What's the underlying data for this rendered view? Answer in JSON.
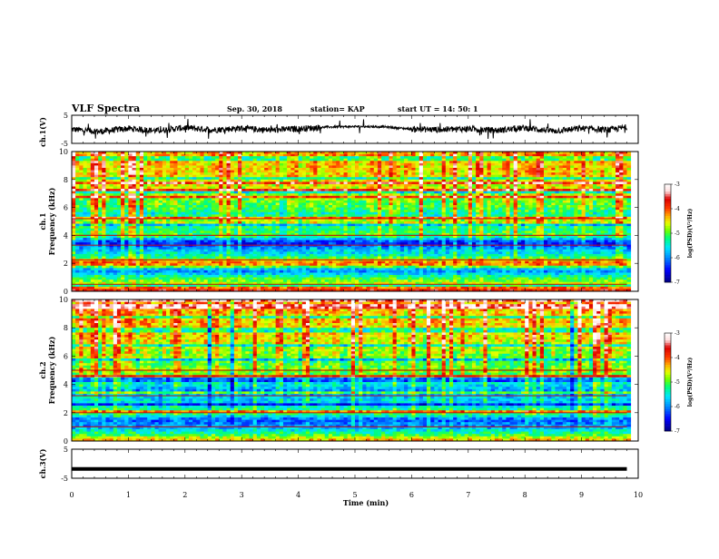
{
  "header": {
    "title": "VLF Spectra",
    "date": "Sep. 30, 2018",
    "station": "station= KAP",
    "start_ut": "start  UT =   14: 50: 1"
  },
  "chart_data": [
    {
      "type": "line",
      "panel": "ch1-waveform",
      "ylabel": "ch.1(V)",
      "ylim": [
        -5,
        5
      ],
      "y_ticks": [
        "5",
        "-5"
      ],
      "xlim": [
        0,
        10
      ],
      "trace_color": "#000000",
      "description_values": "noisy waveform oscillating roughly between -2.5 and 2 V, calmer around 4.5-6 min",
      "x": [
        0,
        0.5,
        1,
        1.5,
        2,
        2.5,
        3,
        3.5,
        4,
        4.5,
        5,
        5.5,
        6,
        6.5,
        7,
        7.5,
        8,
        8.5,
        9,
        9.5,
        9.8
      ],
      "y": [
        0,
        -0.8,
        0.3,
        -0.5,
        0.6,
        -0.2,
        0.4,
        -0.3,
        0.2,
        0.8,
        1.0,
        0.9,
        0.1,
        -0.1,
        0.2,
        -0.4,
        0.5,
        -0.6,
        0.3,
        -0.2,
        0.8
      ]
    },
    {
      "type": "heatmap",
      "panel": "ch1-spectrogram",
      "ylabel": "ch.1\nFrequency (kHz)",
      "ylim": [
        0,
        10
      ],
      "y_ticks": [
        "0",
        "2",
        "4",
        "6",
        "8",
        "10"
      ],
      "xlim": [
        0,
        10
      ],
      "colorbar": {
        "label": "log(PSD)(V²/Hz)",
        "range": [
          -7,
          -3
        ],
        "ticks": [
          "-3",
          "-4",
          "-5",
          "-6",
          "-7"
        ]
      },
      "frequency_profile_kHz": [
        0,
        0.5,
        1,
        1.5,
        2,
        2.5,
        3,
        3.5,
        4,
        4.5,
        5,
        5.5,
        6,
        6.5,
        7,
        7.5,
        8,
        8.5,
        9,
        9.5,
        10
      ],
      "log_psd_profile": [
        -3.6,
        -4.6,
        -5.2,
        -6.1,
        -3.9,
        -5.4,
        -5.8,
        -6.5,
        -5.0,
        -5.3,
        -4.6,
        -5.4,
        -5.0,
        -4.9,
        -4.7,
        -4.6,
        -4.5,
        -4.4,
        -4.4,
        -4.3,
        -4.3
      ]
    },
    {
      "type": "heatmap",
      "panel": "ch2-spectrogram",
      "ylabel": "ch.2\nFrequency (kHz)",
      "ylim": [
        0,
        10
      ],
      "y_ticks": [
        "0",
        "2",
        "4",
        "6",
        "8",
        "10"
      ],
      "xlim": [
        0,
        10
      ],
      "colorbar": {
        "label": "log(PSD)(V²/Hz)",
        "range": [
          -7,
          -3
        ],
        "ticks": [
          "-3",
          "-4",
          "-5",
          "-6",
          "-7"
        ]
      },
      "frequency_profile_kHz": [
        0,
        0.5,
        1,
        1.5,
        2,
        2.5,
        3,
        3.5,
        4,
        4.5,
        5,
        5.5,
        6,
        6.5,
        7,
        7.5,
        8,
        8.5,
        9,
        9.5,
        10
      ],
      "log_psd_profile": [
        -4.2,
        -5.2,
        -5.9,
        -6.2,
        -5.0,
        -5.6,
        -5.7,
        -6.0,
        -5.6,
        -5.2,
        -4.8,
        -5.1,
        -4.9,
        -4.8,
        -4.6,
        -4.5,
        -4.5,
        -4.4,
        -4.4,
        -4.3,
        -4.3
      ]
    },
    {
      "type": "line",
      "panel": "ch3-waveform",
      "ylabel": "ch.3(V)",
      "ylim": [
        -5,
        5
      ],
      "y_ticks": [
        "5",
        "-5"
      ],
      "xlim": [
        0,
        10
      ],
      "trace_color": "#000000",
      "x": [
        0,
        9.8
      ],
      "y": [
        -1.8,
        -1.8
      ]
    }
  ],
  "x_axis": {
    "label": "Time (min)",
    "ticks": [
      "0",
      "1",
      "2",
      "3",
      "4",
      "5",
      "6",
      "7",
      "8",
      "9",
      "10"
    ]
  },
  "colors": {
    "scale": [
      "#000090",
      "#0000ff",
      "#00a0ff",
      "#00ffff",
      "#00ff60",
      "#80ff00",
      "#ffff00",
      "#ff8000",
      "#ff0000",
      "#d00000",
      "#ffffff"
    ]
  }
}
